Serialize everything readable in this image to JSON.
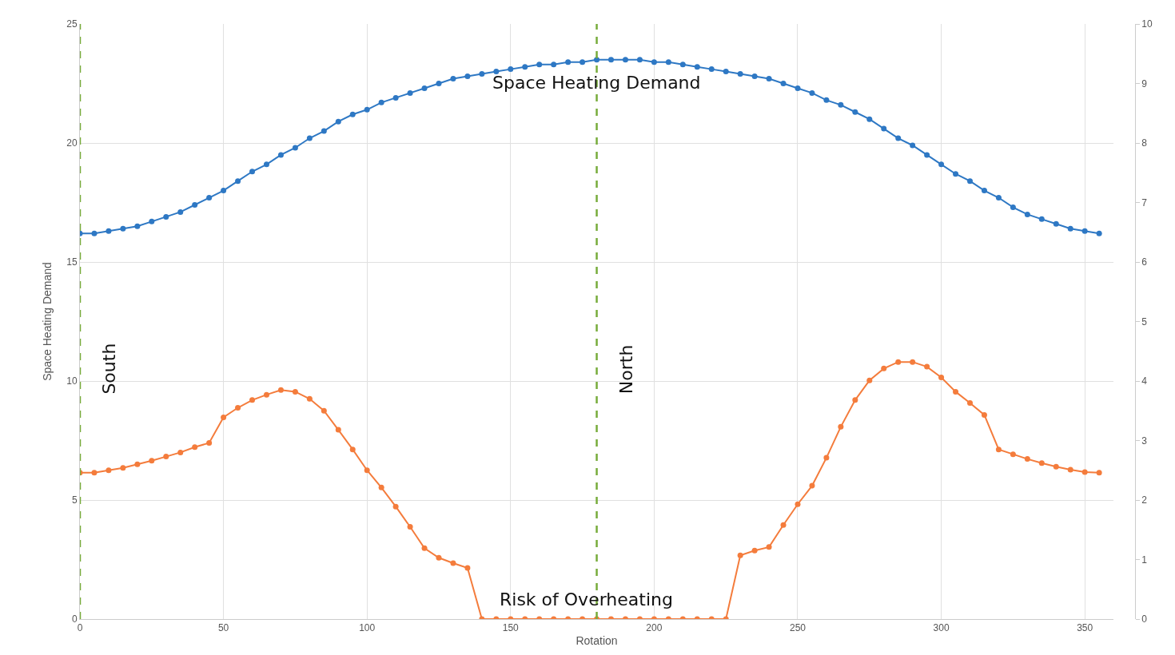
{
  "chart_data": {
    "type": "line",
    "xlabel": "Rotation",
    "ylabel": "Space Heating Demand",
    "x": [
      0,
      5,
      10,
      15,
      20,
      25,
      30,
      35,
      40,
      45,
      50,
      55,
      60,
      65,
      70,
      75,
      80,
      85,
      90,
      95,
      100,
      105,
      110,
      115,
      120,
      125,
      130,
      135,
      140,
      145,
      150,
      155,
      160,
      165,
      170,
      175,
      180,
      185,
      190,
      195,
      200,
      205,
      210,
      215,
      220,
      225,
      230,
      235,
      240,
      245,
      250,
      255,
      260,
      265,
      270,
      275,
      280,
      285,
      290,
      295,
      300,
      305,
      310,
      315,
      320,
      325,
      330,
      335,
      340,
      345,
      350,
      355
    ],
    "series": [
      {
        "name": "Space Heating Demand",
        "color": "#2e78c4",
        "values": [
          16.2,
          16.2,
          16.3,
          16.4,
          16.5,
          16.7,
          16.9,
          17.1,
          17.4,
          17.7,
          18.0,
          18.4,
          18.8,
          19.1,
          19.5,
          19.8,
          20.2,
          20.5,
          20.9,
          21.2,
          21.4,
          21.7,
          21.9,
          22.1,
          22.3,
          22.5,
          22.7,
          22.8,
          22.9,
          23.0,
          23.1,
          23.2,
          23.3,
          23.3,
          23.4,
          23.4,
          23.5,
          23.5,
          23.5,
          23.5,
          23.4,
          23.4,
          23.3,
          23.2,
          23.1,
          23.0,
          22.9,
          22.8,
          22.7,
          22.5,
          22.3,
          22.1,
          21.8,
          21.6,
          21.3,
          21.0,
          20.6,
          20.2,
          19.9,
          19.5,
          19.1,
          18.7,
          18.4,
          18.0,
          17.7,
          17.3,
          17.0,
          16.8,
          16.6,
          16.4,
          16.3,
          16.2
        ]
      },
      {
        "name": "Risk of Overheating",
        "color": "#f47c3c",
        "axis": "y2",
        "values": [
          2.46,
          2.46,
          2.5,
          2.54,
          2.6,
          2.66,
          2.73,
          2.8,
          2.89,
          2.96,
          3.39,
          3.55,
          3.68,
          3.77,
          3.85,
          3.82,
          3.7,
          3.5,
          3.18,
          2.85,
          2.5,
          2.21,
          1.89,
          1.55,
          1.19,
          1.03,
          0.94,
          0.86,
          0,
          0,
          0,
          0,
          0,
          0,
          0,
          0,
          0,
          0,
          0,
          0,
          0,
          0,
          0,
          0,
          0,
          0,
          1.07,
          1.15,
          1.21,
          1.58,
          1.93,
          2.24,
          2.71,
          3.23,
          3.68,
          4.01,
          4.21,
          4.32,
          4.32,
          4.24,
          4.06,
          3.82,
          3.63,
          3.43,
          2.85,
          2.77,
          2.69,
          2.62,
          2.56,
          2.51,
          2.47,
          2.46
        ]
      }
    ],
    "xlim": [
      0,
      360
    ],
    "xticks": [
      0,
      50,
      100,
      150,
      200,
      250,
      300,
      350
    ],
    "ylim": [
      0,
      25
    ],
    "yticks": [
      0,
      5,
      10,
      15,
      20,
      25
    ],
    "y2lim": [
      0,
      10
    ],
    "y2ticks": [
      0,
      1,
      2,
      3,
      4,
      5,
      6,
      7,
      8,
      9,
      10
    ],
    "ref_lines": [
      {
        "axis": "x",
        "value": 0,
        "label": "South",
        "color": "#77ac3b",
        "line_style": "dashed"
      },
      {
        "axis": "x",
        "value": 180,
        "label": "North",
        "color": "#77ac3b",
        "line_style": "dashed"
      }
    ],
    "grid": true,
    "marker": "circle",
    "line_style": "solid",
    "legend": false
  }
}
